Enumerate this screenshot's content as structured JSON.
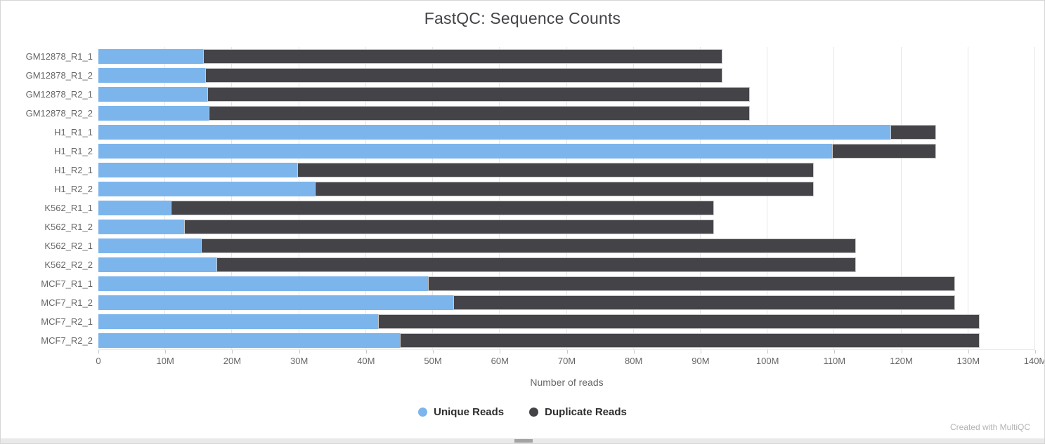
{
  "title": "FastQC: Sequence Counts",
  "footer": "Created with MultiQC",
  "colors": {
    "unique": "#7cb5ec",
    "duplicate": "#434348",
    "gridline": "#e6e6e6",
    "axis_text": "#666666",
    "title_text": "#434348",
    "legend_text": "#2d2d2d"
  },
  "legend": [
    {
      "label": "Unique Reads",
      "color": "#7cb5ec"
    },
    {
      "label": "Duplicate Reads",
      "color": "#434348"
    }
  ],
  "chart_data": {
    "type": "bar",
    "orientation": "horizontal",
    "stacked": true,
    "title": "FastQC: Sequence Counts",
    "xlabel": "Number of reads",
    "unit": "M",
    "xlim": [
      0,
      140
    ],
    "grid": true,
    "legend_position": "bottom",
    "categories": [
      "GM12878_R1_1",
      "GM12878_R1_2",
      "GM12878_R2_1",
      "GM12878_R2_2",
      "H1_R1_1",
      "H1_R1_2",
      "H1_R2_1",
      "H1_R2_2",
      "K562_R1_1",
      "K562_R1_2",
      "K562_R2_1",
      "K562_R2_2",
      "MCF7_R1_1",
      "MCF7_R1_2",
      "MCF7_R2_1",
      "MCF7_R2_2"
    ],
    "series": [
      {
        "name": "Unique Reads",
        "color": "#7cb5ec",
        "values": [
          15.6,
          16.0,
          16.3,
          16.5,
          118.4,
          109.6,
          29.7,
          32.3,
          10.8,
          12.8,
          15.3,
          17.6,
          49.3,
          53.0,
          41.8,
          45.1
        ]
      },
      {
        "name": "Duplicate Reads",
        "color": "#434348",
        "values": [
          77.7,
          77.3,
          81.1,
          80.9,
          6.8,
          15.6,
          77.2,
          74.6,
          81.2,
          79.2,
          97.9,
          95.6,
          78.7,
          75.0,
          89.9,
          86.6
        ]
      }
    ],
    "x_ticks": [
      "0",
      "10M",
      "20M",
      "30M",
      "40M",
      "50M",
      "60M",
      "70M",
      "80M",
      "90M",
      "100M",
      "110M",
      "120M",
      "130M",
      "140M"
    ]
  }
}
